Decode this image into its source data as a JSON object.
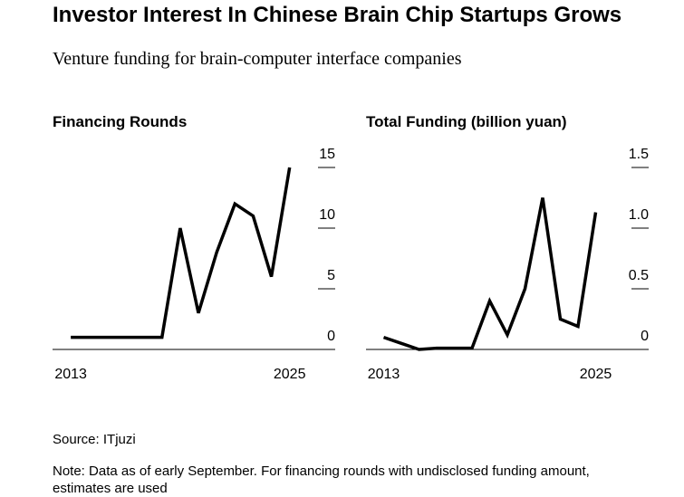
{
  "title": "Investor Interest In Chinese Brain Chip Startups Grows",
  "subtitle": "Venture funding for brain-computer interface companies",
  "source": "Source: ITjuzi",
  "note": "Note: Data as of early September. For financing rounds with undisclosed funding amount, estimates are used",
  "chart_data": [
    {
      "type": "line",
      "title": "Financing Rounds",
      "x": [
        2013,
        2014,
        2015,
        2016,
        2017,
        2018,
        2019,
        2020,
        2021,
        2022,
        2023,
        2024,
        2025
      ],
      "series": [
        {
          "name": "Financing Rounds",
          "color": "#000000",
          "values": [
            1,
            1,
            1,
            1,
            1,
            1,
            10,
            3,
            8,
            12,
            11,
            6,
            15
          ]
        }
      ],
      "xlim": [
        2012,
        2027.5
      ],
      "xticks": [
        2013,
        2025
      ],
      "ylim": [
        0,
        15
      ],
      "yticks": [
        0,
        5,
        10,
        15
      ]
    },
    {
      "type": "line",
      "title": "Total Funding (billion yuan)",
      "x": [
        2013,
        2014,
        2015,
        2016,
        2017,
        2018,
        2019,
        2020,
        2021,
        2022,
        2023,
        2024,
        2025
      ],
      "series": [
        {
          "name": "Total Funding (billion yuan)",
          "color": "#000000",
          "values": [
            0.1,
            0.05,
            0,
            0.01,
            0.01,
            0.01,
            0.4,
            0.12,
            0.5,
            1.25,
            0.25,
            0.19,
            1.13
          ]
        }
      ],
      "xlim": [
        2012,
        2028
      ],
      "xticks": [
        2013,
        2025
      ],
      "ylim": [
        0,
        1.5
      ],
      "yticks": [
        0,
        0.5,
        {
          "value": 1,
          "label": "1.0"
        },
        1.5
      ]
    }
  ]
}
